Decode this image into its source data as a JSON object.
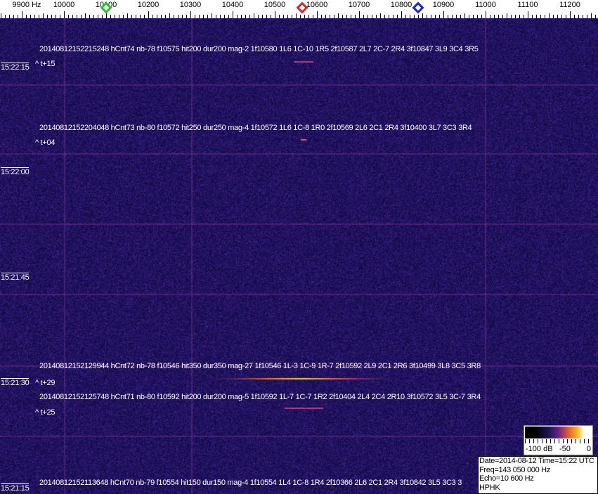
{
  "axis": {
    "unit_label": "9900 Hz",
    "ticks": [
      "10000",
      "10100",
      "10200",
      "10300",
      "10400",
      "10500",
      "10600",
      "10700",
      "10800",
      "10900",
      "11000",
      "11100",
      "11200"
    ],
    "markers": [
      {
        "name": "green-marker",
        "freq": 10100,
        "color": "#22c022"
      },
      {
        "name": "red-marker",
        "freq": 10565,
        "color": "#d02020"
      },
      {
        "name": "blue-marker",
        "freq": 10840,
        "color": "#1020c0"
      }
    ]
  },
  "time_labels": [
    "15:22:15",
    "15:22:00",
    "15:21:45",
    "15:21:30",
    "15:21:15"
  ],
  "detections": [
    {
      "text": "20140812152215248 hCnt74 nb-78 f10575 hit200 dur200 mag-2 1f10580 1L6 1C-10 1R5 2f10587 2L7 2C-7 2R4 3f10847 3L9 3C4 3R5",
      "offset": "^ t+15"
    },
    {
      "text": "20140812152204048 hCnt73 nb-80 f10572 hit250 dur250 mag-4 1f10572 1L6 1C-8 1R0 2f10569 2L6 2C1 2R4 3f10400 3L7 3C3 3R4",
      "offset": "^ t+04"
    },
    {
      "text": "20140812152129944 hCnt72 nb-78 f10546 hit350 dur350 mag-27 1f10546 1L-3 1C-9 1R-7 2f10592 2L9 2C1 2R6 3f10499 3L8 3C5 3R8",
      "offset": "^ t+29"
    },
    {
      "text": "20140812152125748 hCnt71 nb-80 f10592 hit200 dur200 mag-5 1f10592 1L-7 1C-7 1R2 2f10404 2L4 2C4 2R10 3f10572 3L5 3C-7 3R4",
      "offset": "^ t+25"
    },
    {
      "text": "20140812152113648 hCnt70 nb-79 f10554 hit150 dur150 mag-4 1f10554 1L4 1C-8 1R4 2f10366 2L6 2C1 2R4 3f10842 3L5 3C3 3",
      "offset": ""
    }
  ],
  "colorbar": {
    "min_label": "-100 dB",
    "mid_label": "-50",
    "max_label": "0"
  },
  "info": {
    "date_time": "Date=2014-08-12 Time=15:22 UTC",
    "freq": "Freq=143 050 000 Hz",
    "echo": "Echo=10 600 Hz",
    "station": "HPHK"
  }
}
